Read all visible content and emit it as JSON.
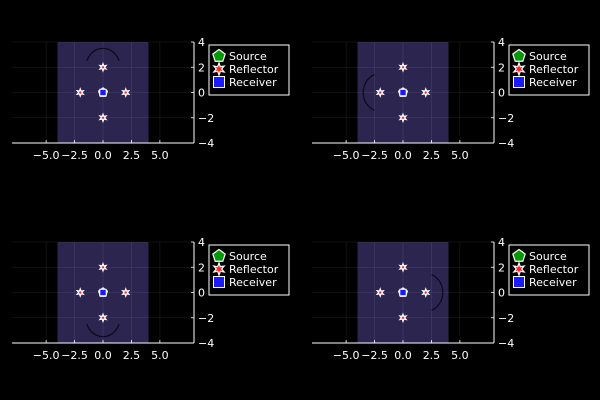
{
  "chart_data": [
    {
      "type": "scatter",
      "title": "",
      "xlabel": "",
      "ylabel": "",
      "xlim": [
        -8,
        8
      ],
      "ylim": [
        -4,
        4
      ],
      "x_ticks": [
        -5.0,
        -2.5,
        0.0,
        2.5,
        5.0
      ],
      "x_tick_labels": [
        "−5.0",
        "−2.5",
        "0.0",
        "2.5",
        "5.0"
      ],
      "y_ticks": [
        -4,
        -2,
        0,
        2,
        4
      ],
      "y_tick_labels": [
        "−4",
        "−2",
        "0",
        "2",
        "4"
      ],
      "y_axis_side": "right",
      "grid": true,
      "legend_position": "top-right",
      "background_field": {
        "x": [
          -4,
          4
        ],
        "y": [
          -4,
          4
        ],
        "color": "#2b2550"
      },
      "wave_arc": {
        "center": [
          0,
          2
        ],
        "radius": 1.5,
        "facing": "up"
      },
      "series": [
        {
          "name": "Source",
          "marker": "pentagon",
          "color": "#009900",
          "points": [
            [
              0,
              0
            ]
          ]
        },
        {
          "name": "Reflector",
          "marker": "star",
          "color": "#ff2222",
          "points": [
            [
              0,
              2
            ],
            [
              -2,
              0
            ],
            [
              2,
              0
            ],
            [
              0,
              -2
            ]
          ]
        },
        {
          "name": "Receiver",
          "marker": "square",
          "color": "#1a1aff",
          "points": [
            [
              0,
              0
            ]
          ]
        }
      ]
    },
    {
      "type": "scatter",
      "title": "",
      "xlabel": "",
      "ylabel": "",
      "xlim": [
        -8,
        8
      ],
      "ylim": [
        -4,
        4
      ],
      "x_ticks": [
        -5.0,
        -2.5,
        0.0,
        2.5,
        5.0
      ],
      "x_tick_labels": [
        "−5.0",
        "−2.5",
        "0.0",
        "2.5",
        "5.0"
      ],
      "y_ticks": [
        -4,
        -2,
        0,
        2,
        4
      ],
      "y_tick_labels": [
        "−4",
        "−2",
        "0",
        "2",
        "4"
      ],
      "y_axis_side": "right",
      "grid": true,
      "legend_position": "top-right",
      "background_field": {
        "x": [
          -4,
          4
        ],
        "y": [
          -4,
          4
        ],
        "color": "#2b2550"
      },
      "wave_arc": {
        "center": [
          -2,
          0
        ],
        "radius": 1.5,
        "facing": "left"
      },
      "series": [
        {
          "name": "Source",
          "marker": "pentagon",
          "color": "#009900",
          "points": [
            [
              0,
              0
            ]
          ]
        },
        {
          "name": "Reflector",
          "marker": "star",
          "color": "#ff2222",
          "points": [
            [
              0,
              2
            ],
            [
              -2,
              0
            ],
            [
              2,
              0
            ],
            [
              0,
              -2
            ]
          ]
        },
        {
          "name": "Receiver",
          "marker": "square",
          "color": "#1a1aff",
          "points": [
            [
              0,
              0
            ]
          ]
        }
      ]
    },
    {
      "type": "scatter",
      "title": "",
      "xlabel": "",
      "ylabel": "",
      "xlim": [
        -8,
        8
      ],
      "ylim": [
        -4,
        4
      ],
      "x_ticks": [
        -5.0,
        -2.5,
        0.0,
        2.5,
        5.0
      ],
      "x_tick_labels": [
        "−5.0",
        "−2.5",
        "0.0",
        "2.5",
        "5.0"
      ],
      "y_ticks": [
        -4,
        -2,
        0,
        2,
        4
      ],
      "y_tick_labels": [
        "−4",
        "−2",
        "0",
        "2",
        "4"
      ],
      "y_axis_side": "right",
      "grid": true,
      "legend_position": "top-right",
      "background_field": {
        "x": [
          -4,
          4
        ],
        "y": [
          -4,
          4
        ],
        "color": "#2b2550"
      },
      "wave_arc": {
        "center": [
          0,
          -2
        ],
        "radius": 1.5,
        "facing": "down"
      },
      "series": [
        {
          "name": "Source",
          "marker": "pentagon",
          "color": "#009900",
          "points": [
            [
              0,
              0
            ]
          ]
        },
        {
          "name": "Reflector",
          "marker": "star",
          "color": "#ff2222",
          "points": [
            [
              0,
              2
            ],
            [
              -2,
              0
            ],
            [
              2,
              0
            ],
            [
              0,
              -2
            ]
          ]
        },
        {
          "name": "Receiver",
          "marker": "square",
          "color": "#1a1aff",
          "points": [
            [
              0,
              0
            ]
          ]
        }
      ]
    },
    {
      "type": "scatter",
      "title": "",
      "xlabel": "",
      "ylabel": "",
      "xlim": [
        -8,
        8
      ],
      "ylim": [
        -4,
        4
      ],
      "x_ticks": [
        -5.0,
        -2.5,
        0.0,
        2.5,
        5.0
      ],
      "x_tick_labels": [
        "−5.0",
        "−2.5",
        "0.0",
        "2.5",
        "5.0"
      ],
      "y_ticks": [
        -4,
        -2,
        0,
        2,
        4
      ],
      "y_tick_labels": [
        "−4",
        "−2",
        "0",
        "2",
        "4"
      ],
      "y_axis_side": "right",
      "grid": true,
      "legend_position": "top-right",
      "background_field": {
        "x": [
          -4,
          4
        ],
        "y": [
          -4,
          4
        ],
        "color": "#2b2550"
      },
      "wave_arc": {
        "center": [
          2,
          0
        ],
        "radius": 1.5,
        "facing": "right"
      },
      "series": [
        {
          "name": "Source",
          "marker": "pentagon",
          "color": "#009900",
          "points": [
            [
              0,
              0
            ]
          ]
        },
        {
          "name": "Reflector",
          "marker": "star",
          "color": "#ff2222",
          "points": [
            [
              0,
              2
            ],
            [
              -2,
              0
            ],
            [
              2,
              0
            ],
            [
              0,
              -2
            ]
          ]
        },
        {
          "name": "Receiver",
          "marker": "square",
          "color": "#1a1aff",
          "points": [
            [
              0,
              0
            ]
          ]
        }
      ]
    }
  ]
}
